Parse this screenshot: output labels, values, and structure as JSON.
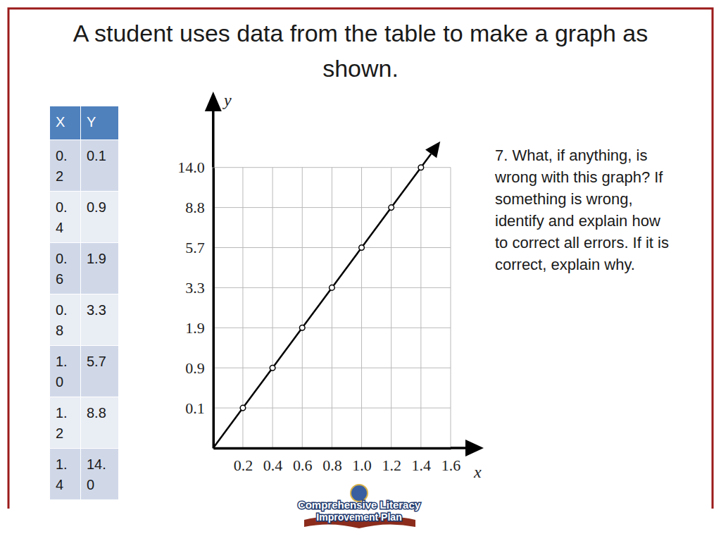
{
  "title": "A student uses data from the table to make a graph as shown.",
  "table": {
    "header": [
      "X",
      "Y"
    ],
    "rows": [
      [
        "0.2",
        "0.1"
      ],
      [
        "0.4",
        "0.9"
      ],
      [
        "0.6",
        "1.9"
      ],
      [
        "0.8",
        "3.3"
      ],
      [
        "1.0",
        "5.7"
      ],
      [
        "1.2",
        "8.8"
      ],
      [
        "1.4",
        "14.0"
      ]
    ]
  },
  "question": "7. What, if anything, is wrong with this graph? If something is wrong, identify and explain how to correct all errors. If it is correct, explain why.",
  "logo": [
    "Comprehensive Literacy",
    "Improvement Plan"
  ],
  "chart_data": {
    "type": "line",
    "x_label": "x",
    "y_label": "y",
    "x": [
      0.2,
      0.4,
      0.6,
      0.8,
      1.0,
      1.2,
      1.4
    ],
    "values": [
      0.1,
      0.9,
      1.9,
      3.3,
      5.7,
      8.8,
      14.0
    ],
    "color": "#000000",
    "marker": "circle",
    "grid": true,
    "xlim": [
      0,
      1.6
    ],
    "xticks": [
      0.2,
      0.4,
      0.6,
      0.8,
      {
        "value": 1,
        "label": "1.0"
      },
      1.2,
      1.4,
      1.6
    ],
    "ylim": [
      0,
      14
    ],
    "yticks": [
      0.1,
      0.9,
      1.9,
      3.3,
      5.7,
      8.8,
      {
        "value": 14,
        "label": "14.0"
      }
    ]
  }
}
